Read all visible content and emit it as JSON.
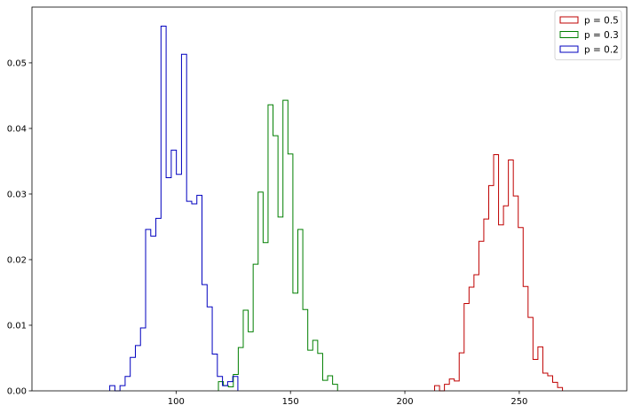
{
  "chart_data": {
    "type": "histogram-step",
    "xlim": [
      37,
      297
    ],
    "ylim": [
      0,
      0.0585
    ],
    "x_ticks": [
      {
        "value": 100,
        "label": "100"
      },
      {
        "value": 150,
        "label": "150"
      },
      {
        "value": 200,
        "label": "200"
      },
      {
        "value": 250,
        "label": "250"
      }
    ],
    "y_ticks": [
      {
        "value": 0,
        "label": "0.00"
      },
      {
        "value": 0.01,
        "label": "0.01"
      },
      {
        "value": 0.02,
        "label": "0.02"
      },
      {
        "value": 0.03,
        "label": "0.03"
      },
      {
        "value": 0.04,
        "label": "0.04"
      },
      {
        "value": 0.05,
        "label": "0.05"
      }
    ],
    "grid": false,
    "legend": {
      "location": "top-right"
    },
    "series": [
      {
        "name": "p = 0.5",
        "color": "#bf0000",
        "bin_start": 213,
        "bin_width": 2.15,
        "density": [
          0.0008,
          0.0,
          0.001,
          0.0018,
          0.0015,
          0.0058,
          0.0133,
          0.0158,
          0.0177,
          0.0228,
          0.0262,
          0.0313,
          0.036,
          0.0253,
          0.0282,
          0.0352,
          0.0297,
          0.0249,
          0.0159,
          0.0112,
          0.0048,
          0.0067,
          0.0027,
          0.0023,
          0.0013,
          0.0005
        ]
      },
      {
        "name": "p = 0.3",
        "color": "#007f00",
        "bin_start": 118.5,
        "bin_width": 2.17,
        "density": [
          0.0014,
          0.0008,
          0.0006,
          0.0025,
          0.0066,
          0.0123,
          0.009,
          0.0193,
          0.0303,
          0.0226,
          0.0436,
          0.0389,
          0.0265,
          0.0443,
          0.0361,
          0.0149,
          0.0246,
          0.0124,
          0.0062,
          0.0077,
          0.0057,
          0.0016,
          0.0023,
          0.001
        ]
      },
      {
        "name": "p = 0.2",
        "color": "#0000bf",
        "bin_start": 71,
        "bin_width": 2.24,
        "density": [
          0.0008,
          0.0,
          0.0008,
          0.0022,
          0.0051,
          0.0069,
          0.0096,
          0.0246,
          0.0236,
          0.0263,
          0.0556,
          0.0325,
          0.0367,
          0.033,
          0.0513,
          0.0289,
          0.0285,
          0.0298,
          0.0162,
          0.0128,
          0.0056,
          0.0022,
          0.0008,
          0.0014,
          0.0022
        ]
      }
    ]
  }
}
